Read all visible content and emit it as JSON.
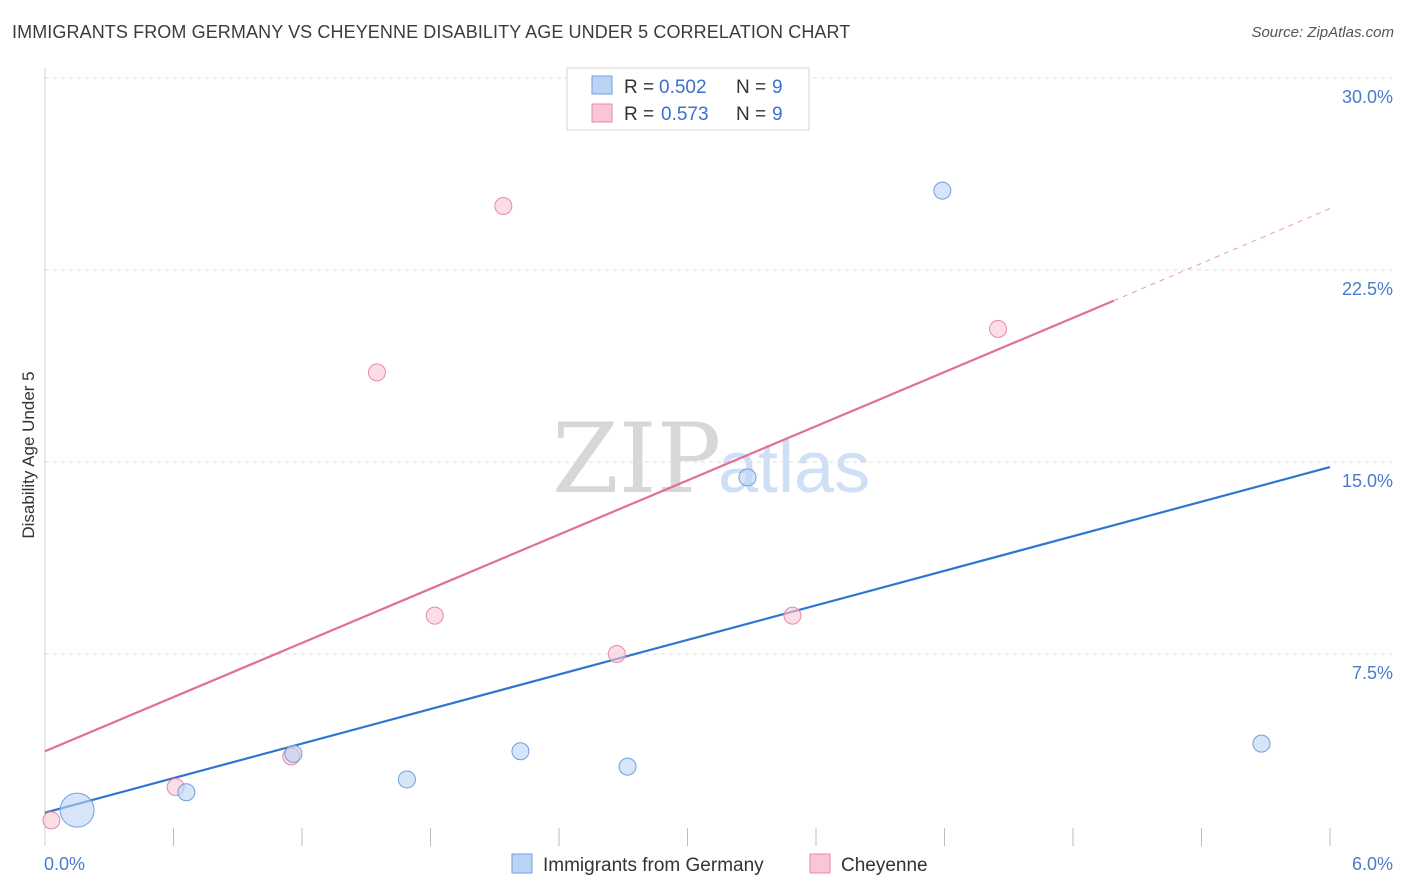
{
  "title": "IMMIGRANTS FROM GERMANY VS CHEYENNE DISABILITY AGE UNDER 5 CORRELATION CHART",
  "source": "Source: ZipAtlas.com",
  "watermark": {
    "zip": "ZIP",
    "atlas": "atlas"
  },
  "chart_data": {
    "type": "scatter",
    "title": "IMMIGRANTS FROM GERMANY VS CHEYENNE DISABILITY AGE UNDER 5 CORRELATION CHART",
    "xlabel": "",
    "ylabel": "Disability Age Under 5",
    "xlim": [
      0,
      6.0
    ],
    "ylim": [
      0,
      30.0
    ],
    "x_tick_labels": [
      "0.0%",
      "6.0%"
    ],
    "y_ticks": [
      7.5,
      15.0,
      22.5,
      30.0
    ],
    "y_tick_labels": [
      "7.5%",
      "15.0%",
      "22.5%",
      "30.0%"
    ],
    "series": [
      {
        "name": "Immigrants from Germany",
        "color": "#6f9fdf",
        "fill": "#bcd4f4",
        "line_color": "#2f76cf",
        "r_label": "R =",
        "r_value": "0.502",
        "n_label": "N =",
        "n_value": "9",
        "points": [
          {
            "x": 0.15,
            "y": 1.4,
            "size": "large"
          },
          {
            "x": 0.66,
            "y": 2.1
          },
          {
            "x": 1.16,
            "y": 3.6
          },
          {
            "x": 1.69,
            "y": 2.6
          },
          {
            "x": 2.22,
            "y": 3.7
          },
          {
            "x": 2.72,
            "y": 3.1
          },
          {
            "x": 3.28,
            "y": 14.4
          },
          {
            "x": 4.19,
            "y": 25.6
          },
          {
            "x": 5.68,
            "y": 4.0
          }
        ],
        "trend": {
          "x0": 0.0,
          "y0": 1.3,
          "x1": 6.0,
          "y1": 14.8
        }
      },
      {
        "name": "Cheyenne",
        "color": "#e98aa6",
        "fill": "#f8c6d4",
        "line_color": "#e06f94",
        "r_label": "R =",
        "r_value": "0.573",
        "n_label": "N =",
        "n_value": "9",
        "points": [
          {
            "x": 0.03,
            "y": 1.0
          },
          {
            "x": 0.61,
            "y": 2.3
          },
          {
            "x": 1.15,
            "y": 3.5
          },
          {
            "x": 1.55,
            "y": 18.5
          },
          {
            "x": 1.82,
            "y": 9.0
          },
          {
            "x": 2.14,
            "y": 25.0
          },
          {
            "x": 2.67,
            "y": 7.5
          },
          {
            "x": 3.49,
            "y": 9.0
          },
          {
            "x": 4.45,
            "y": 20.2
          }
        ],
        "trend": {
          "x0": 0.0,
          "y0": 3.7,
          "x1": 4.99,
          "y1": 21.3
        },
        "trend_dashed": {
          "x0": 4.99,
          "y0": 21.3,
          "x1": 6.0,
          "y1": 24.9
        }
      }
    ]
  }
}
